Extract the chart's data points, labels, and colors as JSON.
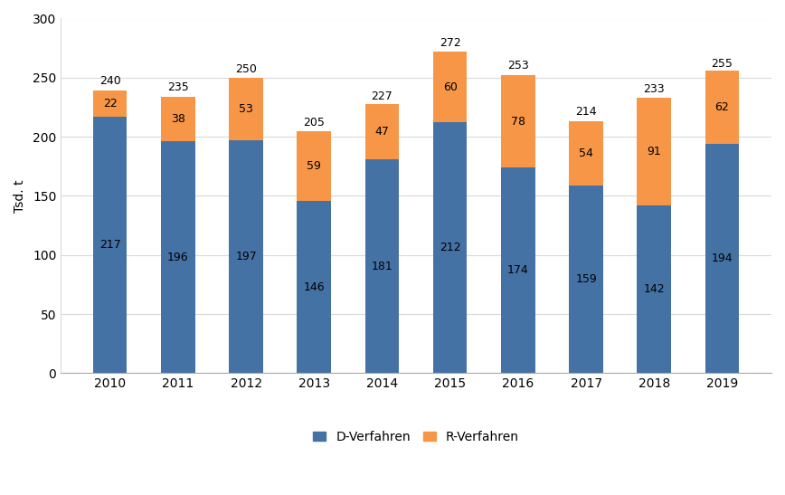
{
  "years": [
    2010,
    2011,
    2012,
    2013,
    2014,
    2015,
    2016,
    2017,
    2018,
    2019
  ],
  "d_verfahren": [
    217,
    196,
    197,
    146,
    181,
    212,
    174,
    159,
    142,
    194
  ],
  "r_verfahren": [
    22,
    38,
    53,
    59,
    47,
    60,
    78,
    54,
    91,
    62
  ],
  "totals": [
    240,
    235,
    250,
    205,
    227,
    272,
    253,
    214,
    233,
    255
  ],
  "bar_color_d": "#4472A4",
  "bar_color_r": "#F79646",
  "ylabel": "Tsd. t",
  "ylim": [
    0,
    300
  ],
  "yticks": [
    0,
    50,
    100,
    150,
    200,
    250,
    300
  ],
  "legend_d": "D-Verfahren",
  "legend_r": "R-Verfahren",
  "background_color": "#ffffff",
  "plot_bg_color": "#f8f8f8",
  "bar_width": 0.5,
  "label_fontsize": 9,
  "tick_fontsize": 10,
  "legend_fontsize": 10,
  "grid_color": "#d9d9d9"
}
